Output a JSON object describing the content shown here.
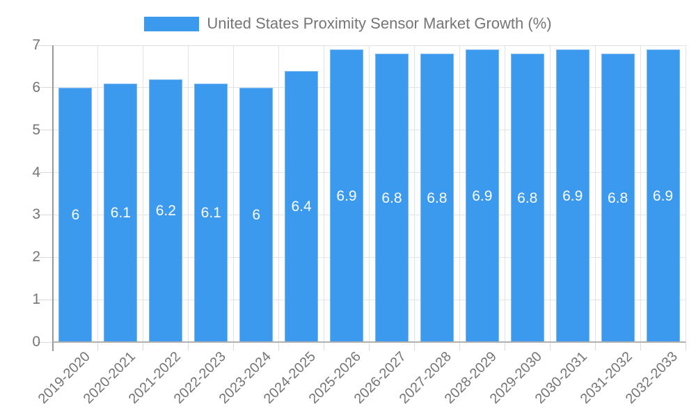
{
  "legend": {
    "label": "United States Proximity Sensor Market Growth (%)"
  },
  "colors": {
    "bar_fill": "#3b99ee",
    "bar_edge": "#7ab7f3",
    "grid_line": "#e3e3e3",
    "tick_line": "#d9d9d9",
    "axis_line": "#999999",
    "baseline": "#b0b0b0",
    "label_text": "#757575",
    "bar_label_text": "#ffffff",
    "background": "#ffffff"
  },
  "chart_data": {
    "type": "bar",
    "title": "United States Proximity Sensor Market Growth (%)",
    "categories": [
      "2019-2020",
      "2020-2021",
      "2021-2022",
      "2022-2023",
      "2023-2024",
      "2024-2025",
      "2025-2026",
      "2026-2027",
      "2027-2028",
      "2028-2029",
      "2029-2030",
      "2030-2031",
      "2031-2032",
      "2032-2033"
    ],
    "values": [
      6,
      6.1,
      6.2,
      6.1,
      6,
      6.4,
      6.9,
      6.8,
      6.8,
      6.9,
      6.8,
      6.9,
      6.8,
      6.9
    ],
    "xlabel": "",
    "ylabel": "",
    "ylim": [
      0,
      7
    ],
    "yticks": [
      0,
      1,
      2,
      3,
      4,
      5,
      6,
      7
    ],
    "grid": true,
    "legend_position": "top",
    "bar_value_labels_inside": true,
    "x_label_rotation_deg": -45
  }
}
